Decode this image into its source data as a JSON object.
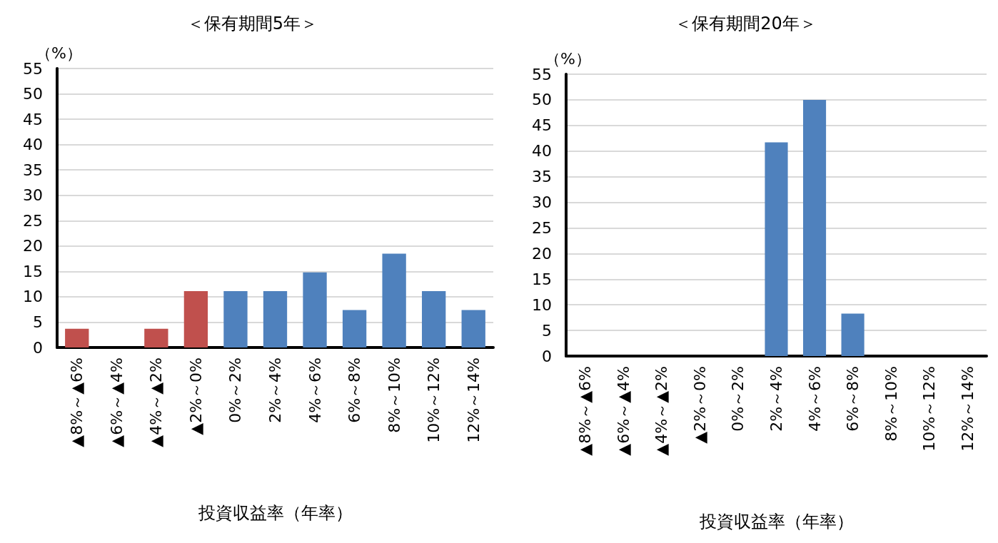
{
  "chart_data": [
    {
      "type": "bar",
      "title": "＜保有期間5年＞",
      "ylabel": "（%）",
      "xlabel": "投資収益率（年率）",
      "categories": [
        "▲8%～▲6%",
        "▲6%～▲4%",
        "▲4%～▲2%",
        "▲2%～0%",
        "0%～2%",
        "2%～4%",
        "4%～6%",
        "6%～8%",
        "8%～10%",
        "10%～12%",
        "12%～14%"
      ],
      "values": [
        3.7,
        0,
        3.7,
        11.1,
        11.1,
        11.1,
        14.8,
        7.4,
        18.5,
        11.1,
        7.4
      ],
      "colors": [
        "#c0504d",
        "#c0504d",
        "#c0504d",
        "#c0504d",
        "#4f81bd",
        "#4f81bd",
        "#4f81bd",
        "#4f81bd",
        "#4f81bd",
        "#4f81bd",
        "#4f81bd"
      ],
      "ylim": [
        0,
        55
      ],
      "yticks": [
        0,
        5,
        10,
        15,
        20,
        25,
        30,
        35,
        40,
        45,
        50,
        55
      ],
      "grid": "y"
    },
    {
      "type": "bar",
      "title": "＜保有期間20年＞",
      "ylabel": "（%）",
      "xlabel": "投資収益率（年率）",
      "categories": [
        "▲8%～▲6%",
        "▲6%～▲4%",
        "▲4%～▲2%",
        "▲2%～0%",
        "0%～2%",
        "2%～4%",
        "4%～6%",
        "6%～8%",
        "8%～10%",
        "10%～12%",
        "12%～14%"
      ],
      "values": [
        0,
        0,
        0,
        0,
        0,
        41.7,
        50,
        8.3,
        0,
        0,
        0
      ],
      "color": "#4f81bd",
      "ylim": [
        0,
        55
      ],
      "yticks": [
        0,
        5,
        10,
        15,
        20,
        25,
        30,
        35,
        40,
        45,
        50,
        55
      ],
      "grid": "y"
    }
  ]
}
